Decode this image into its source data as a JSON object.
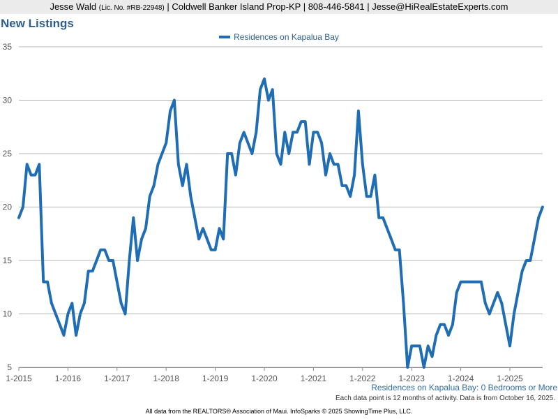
{
  "header": {
    "name": "Jesse Wald",
    "license": "(Lic. No. #RB-22948)",
    "contact": "| Coldwell Banker Island Prop-KP | 808-446-5841 | Jesse@HiRealEstateExperts.com"
  },
  "colors": {
    "line": "#1f6db5",
    "title": "#2f5e8c",
    "grid": "#b5b5b5"
  },
  "chart_data": {
    "type": "line",
    "title": "New Listings",
    "xlabel": "",
    "ylabel": "",
    "ylim": [
      5,
      35
    ],
    "y_ticks": [
      5,
      10,
      15,
      20,
      25,
      30,
      35
    ],
    "x_ticks": [
      "1-2015",
      "1-2016",
      "1-2017",
      "1-2018",
      "1-2019",
      "1-2020",
      "1-2021",
      "1-2022",
      "1-2023",
      "1-2024",
      "1-2025"
    ],
    "grid": true,
    "legend": "top-center",
    "x_start": "1-2015",
    "series": [
      {
        "name": "Residences on Kapalua Bay",
        "values": [
          19,
          20,
          24,
          23,
          23,
          24,
          13,
          13,
          11,
          10,
          9,
          8,
          10,
          11,
          8,
          10,
          11,
          14,
          14,
          15,
          16,
          16,
          15,
          15,
          13,
          11,
          10,
          15,
          19,
          15,
          17,
          18,
          21,
          22,
          24,
          25,
          26,
          29,
          30,
          24,
          22,
          24,
          21,
          19,
          17,
          18,
          17,
          16,
          16,
          18,
          17,
          25,
          25,
          23,
          26,
          27,
          26,
          25,
          27,
          31,
          32,
          30,
          31,
          25,
          24,
          27,
          25,
          27,
          27,
          28,
          28,
          24,
          27,
          27,
          26,
          23,
          25,
          24,
          24,
          22,
          22,
          21,
          23,
          29,
          24,
          21,
          21,
          23,
          19,
          19,
          18,
          17,
          16,
          16,
          11,
          5,
          7,
          7,
          7,
          5,
          7,
          6,
          8,
          9,
          9,
          8,
          9,
          12,
          13,
          13,
          13,
          13,
          13,
          13,
          11,
          10,
          11,
          12,
          11,
          9,
          7,
          10,
          12,
          14,
          15,
          15,
          17,
          19,
          20
        ]
      }
    ]
  },
  "subtitle": "Residences on Kapalua Bay: 0 Bedrooms or More",
  "note": "Each data point is 12 months of activity. Data is from October 16, 2025.",
  "footer": "All data from the REALTORS® Association of Maui. InfoSparks © 2025 ShowingTime Plus, LLC."
}
